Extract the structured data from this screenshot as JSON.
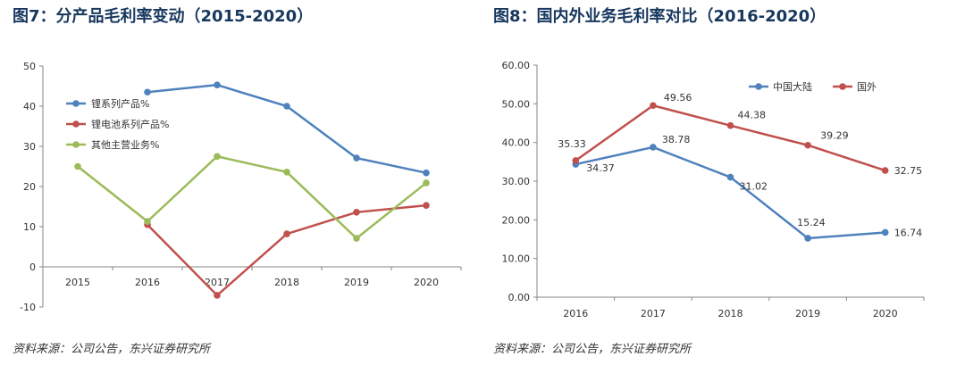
{
  "figure1": {
    "title": "图7：分产品毛利率变动（2015-2020）",
    "source": "资料来源：公司公告，东兴证券研究所"
  },
  "figure2": {
    "title": "图8：国内外业务毛利率对比（2016-2020）",
    "source": "资料来源：公司公告，东兴证券研究所"
  },
  "chart_data": [
    {
      "type": "line",
      "title": "图7：分产品毛利率变动（2015-2020）",
      "x": [
        "2015",
        "2016",
        "2017",
        "2018",
        "2019",
        "2020"
      ],
      "ylim": [
        -10,
        50
      ],
      "yticks": [
        "-10",
        "0",
        "10",
        "20",
        "30",
        "40",
        "50"
      ],
      "legend_position": "top-left",
      "series": [
        {
          "name": "锂系列产品%",
          "color": "#4f81bd",
          "values": [
            null,
            43.5,
            45.3,
            40.0,
            27.1,
            23.4
          ]
        },
        {
          "name": "锂电池系列产品%",
          "color": "#c0504d",
          "values": [
            null,
            10.5,
            -7.1,
            8.2,
            13.6,
            15.3
          ]
        },
        {
          "name": "其他主营业务%",
          "color": "#9bbb59",
          "values": [
            25.0,
            11.3,
            27.5,
            23.6,
            7.1,
            20.9
          ]
        }
      ]
    },
    {
      "type": "line",
      "title": "图8：国内外业务毛利率对比（2016-2020）",
      "x": [
        "2016",
        "2017",
        "2018",
        "2019",
        "2020"
      ],
      "ylim": [
        0,
        60
      ],
      "yticks": [
        "0.00",
        "10.00",
        "20.00",
        "30.00",
        "40.00",
        "50.00",
        "60.00"
      ],
      "legend_position": "top-right",
      "series": [
        {
          "name": "中国大陆",
          "color": "#4f81bd",
          "values": [
            34.37,
            38.78,
            31.02,
            15.24,
            16.74
          ],
          "labels": [
            "34.37",
            "38.78",
            "31.02",
            "15.24",
            "16.74"
          ]
        },
        {
          "name": "国外",
          "color": "#c0504d",
          "values": [
            35.33,
            49.56,
            44.38,
            39.29,
            32.75
          ],
          "labels": [
            "35.33",
            "49.56",
            "44.38",
            "39.29",
            "32.75"
          ]
        }
      ]
    }
  ]
}
